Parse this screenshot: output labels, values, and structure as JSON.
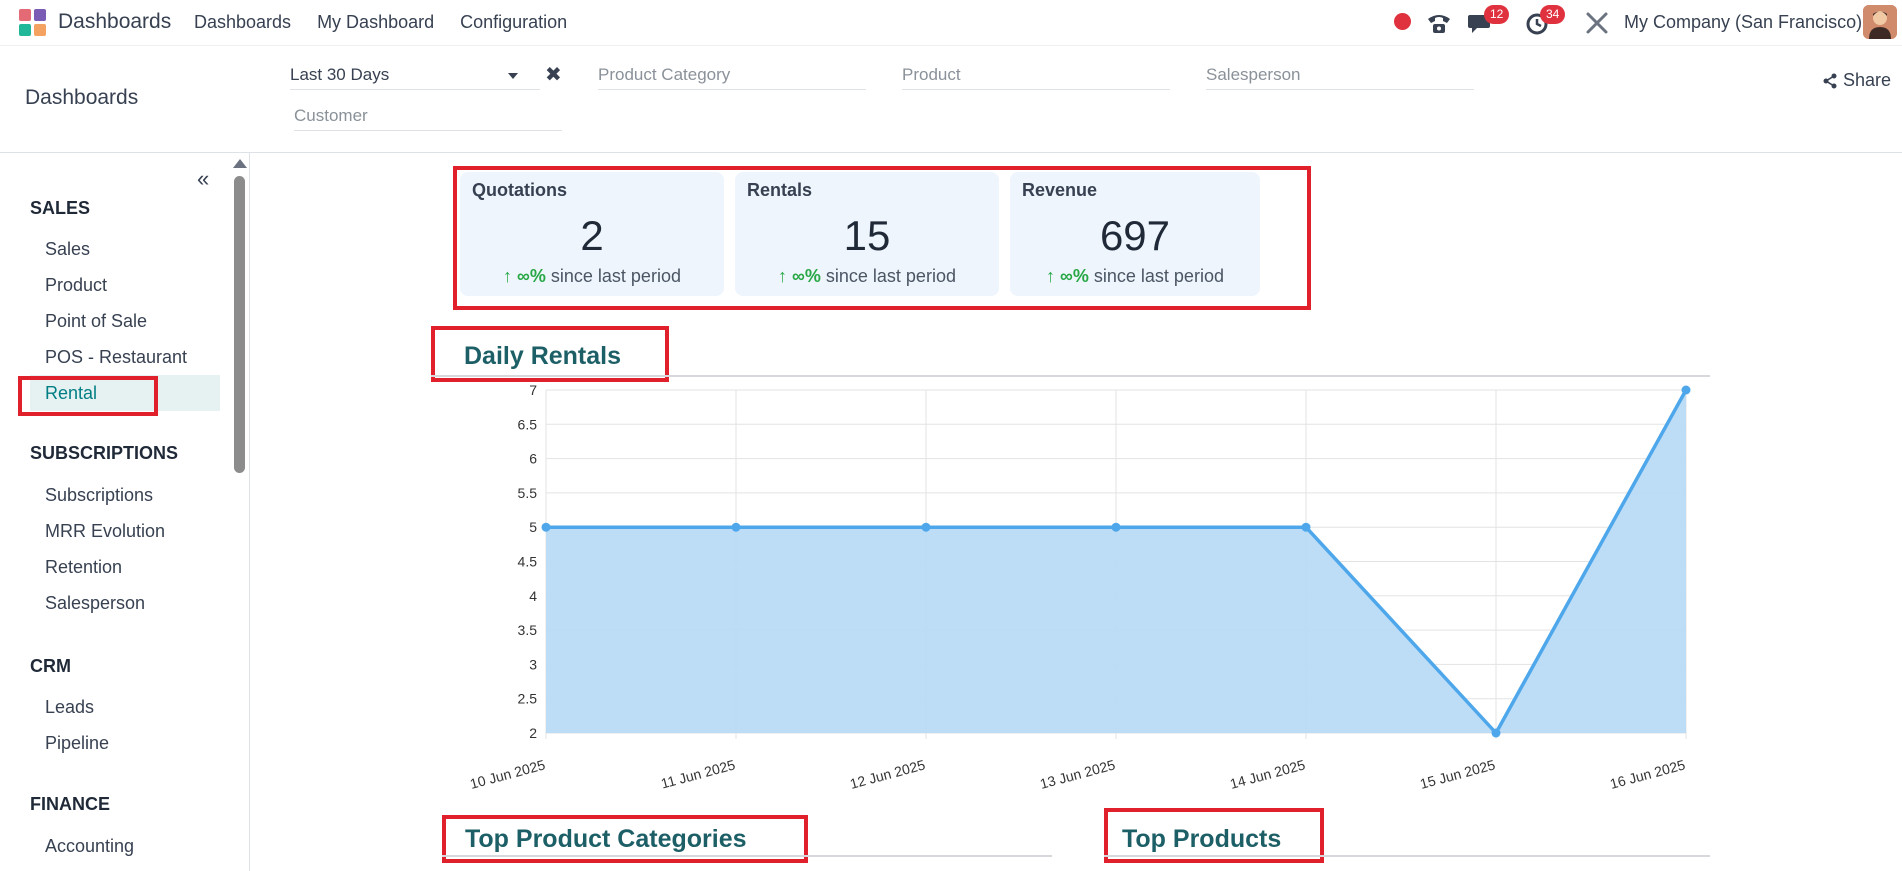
{
  "navbar": {
    "app_name": "Dashboards",
    "menu": [
      "Dashboards",
      "My Dashboard",
      "Configuration"
    ],
    "messages_badge": "12",
    "activities_badge": "34",
    "company": "My Company (San Francisco)",
    "icons": [
      "apps-grid-icon",
      "record-icon",
      "phone-icon",
      "chat-icon",
      "clock-icon",
      "tools-icon"
    ]
  },
  "control_panel": {
    "title": "Dashboards",
    "period_filter": "Last 30 Days",
    "filters": {
      "product_category": "Product Category",
      "product": "Product",
      "salesperson": "Salesperson",
      "customer": "Customer"
    },
    "share_label": "Share"
  },
  "sidebar": {
    "sections": [
      {
        "title": "SALES",
        "items": [
          "Sales",
          "Product",
          "Point of Sale",
          "POS - Restaurant",
          "Rental"
        ]
      },
      {
        "title": "SUBSCRIPTIONS",
        "items": [
          "Subscriptions",
          "MRR Evolution",
          "Retention",
          "Salesperson"
        ]
      },
      {
        "title": "CRM",
        "items": [
          "Leads",
          "Pipeline"
        ]
      },
      {
        "title": "FINANCE",
        "items": [
          "Accounting"
        ]
      }
    ],
    "active_item": "Rental"
  },
  "kpis": [
    {
      "title": "Quotations",
      "value": "2",
      "delta": "∞%",
      "suffix": "since last period"
    },
    {
      "title": "Rentals",
      "value": "15",
      "delta": "∞%",
      "suffix": "since last period"
    },
    {
      "title": "Revenue",
      "value": "697",
      "delta": "∞%",
      "suffix": "since last period"
    }
  ],
  "sections": {
    "daily_rentals": "Daily Rentals",
    "top_product_categories": "Top Product Categories",
    "top_products": "Top Products"
  },
  "chart_data": {
    "type": "area",
    "title": "Daily Rentals",
    "x": [
      "10 Jun 2025",
      "11 Jun 2025",
      "12 Jun 2025",
      "13 Jun 2025",
      "14 Jun 2025",
      "15 Jun 2025",
      "16 Jun 2025"
    ],
    "values": [
      5,
      5,
      5,
      5,
      5,
      2,
      7
    ],
    "ylim": [
      2,
      7
    ],
    "yticks": [
      "7",
      "6.5",
      "6",
      "5.5",
      "5",
      "4.5",
      "4",
      "3.5",
      "3",
      "2.5",
      "2"
    ],
    "grid": true,
    "line_color": "#4ea7ea",
    "fill_color": "#b9dbf7"
  },
  "colors": {
    "accent": "#017e84",
    "highlight": "#e0202a",
    "positive": "#28a745",
    "badge": "#e0323e"
  }
}
